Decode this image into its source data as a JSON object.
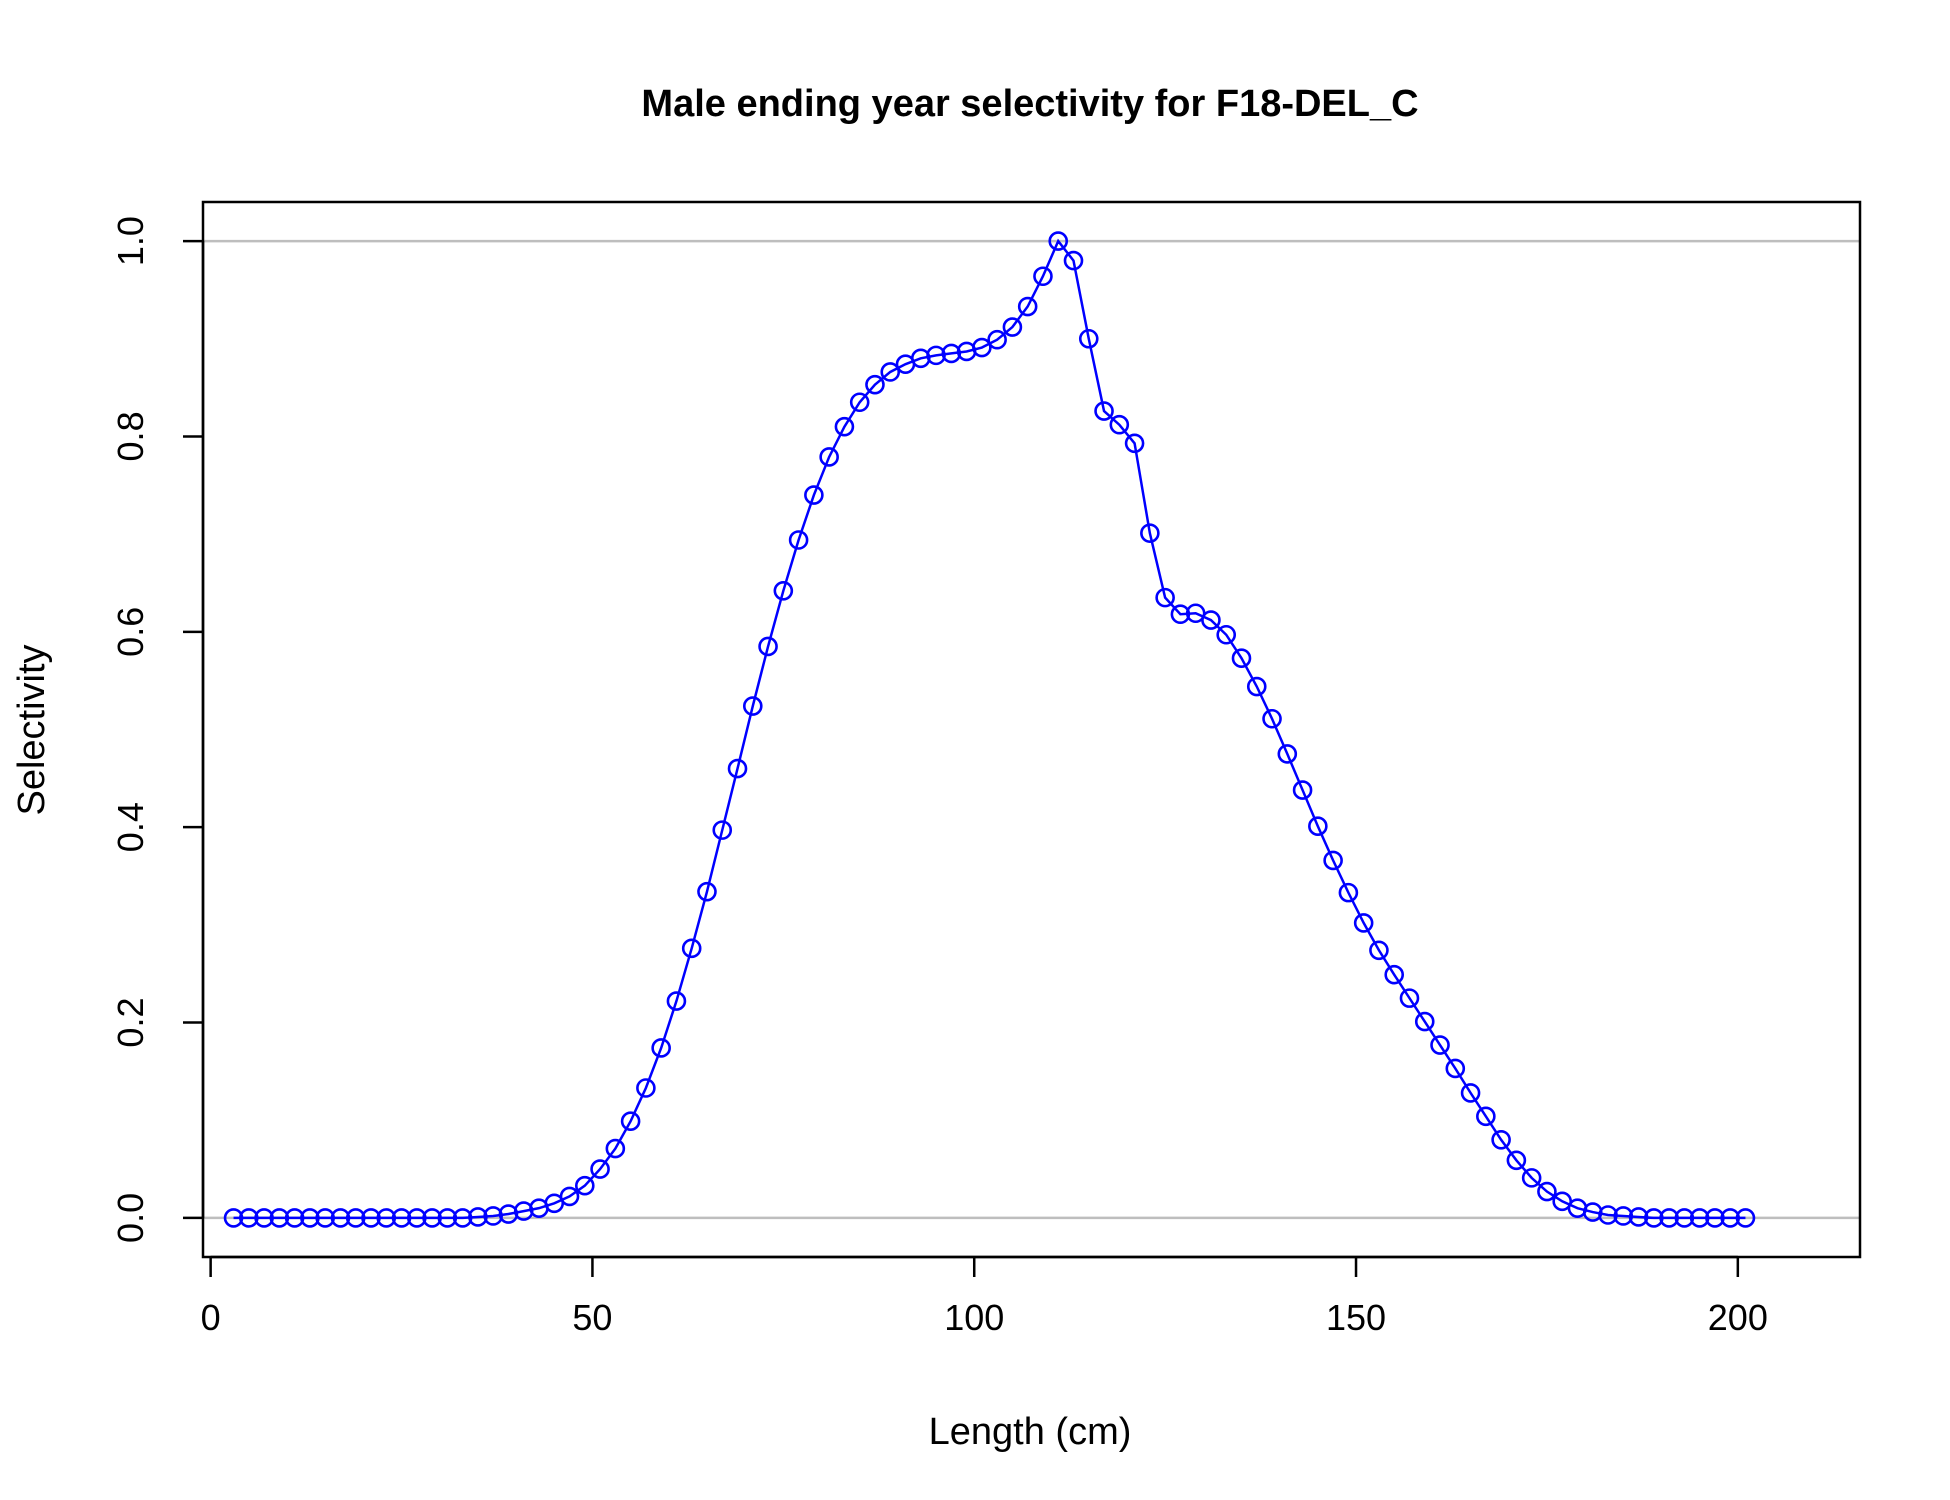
{
  "chart_data": {
    "type": "line",
    "title": "Male ending year selectivity for F18-DEL_C",
    "xlabel": "Length (cm)",
    "ylabel": "Selectivity",
    "xlim": [
      -1,
      216
    ],
    "ylim": [
      -0.04,
      1.04
    ],
    "x_ticks": [
      0,
      50,
      100,
      150,
      200
    ],
    "x_tick_labels": [
      "0",
      "50",
      "100",
      "150",
      "200"
    ],
    "y_ticks": [
      0,
      0.2,
      0.4,
      0.6,
      0.8,
      1
    ],
    "y_tick_labels": [
      "0.0",
      "0.2",
      "0.4",
      "0.6",
      "0.8",
      "1.0"
    ],
    "reference_lines": [
      0,
      1
    ],
    "grid": false,
    "legend": "none",
    "colors": {
      "series": "#0000ff",
      "reference": "#bebebe",
      "axis": "#000000"
    },
    "series": [
      {
        "x": [
          3,
          5,
          7,
          9,
          11,
          13,
          15,
          17,
          19,
          21,
          23,
          25,
          27,
          29,
          31,
          33,
          35,
          37,
          39,
          41,
          43,
          45,
          47,
          49,
          51,
          53,
          55,
          57,
          59,
          61,
          63,
          65,
          67,
          69,
          71,
          73,
          75,
          77,
          79,
          81,
          83,
          85,
          87,
          89,
          91,
          93,
          95,
          97,
          99,
          101,
          103,
          105,
          107,
          109,
          111,
          113,
          115,
          117,
          119,
          121,
          123,
          125,
          127,
          129,
          131,
          133,
          135,
          137,
          139,
          141,
          143,
          145,
          147,
          149,
          151,
          153,
          155,
          157,
          159,
          161,
          163,
          165,
          167,
          169,
          171,
          173,
          175,
          177,
          179,
          181,
          183,
          185,
          187,
          189,
          191,
          193,
          195,
          197,
          199,
          201
        ],
        "values": [
          0,
          0,
          0,
          0,
          0,
          0,
          0,
          0,
          0,
          0,
          0,
          0,
          0,
          0,
          0,
          0,
          0.001,
          0.002,
          0.004,
          0.007,
          0.01,
          0.015,
          0.022,
          0.033,
          0.05,
          0.071,
          0.099,
          0.133,
          0.174,
          0.222,
          0.276,
          0.334,
          0.397,
          0.46,
          0.524,
          0.585,
          0.642,
          0.694,
          0.74,
          0.779,
          0.81,
          0.835,
          0.853,
          0.866,
          0.874,
          0.88,
          0.883,
          0.885,
          0.887,
          0.891,
          0.899,
          0.912,
          0.933,
          0.964,
          1.0,
          0.98,
          0.9,
          0.826,
          0.812,
          0.793,
          0.701,
          0.635,
          0.618,
          0.619,
          0.612,
          0.597,
          0.573,
          0.544,
          0.511,
          0.475,
          0.438,
          0.401,
          0.366,
          0.333,
          0.302,
          0.274,
          0.249,
          0.225,
          0.201,
          0.177,
          0.153,
          0.128,
          0.104,
          0.08,
          0.059,
          0.041,
          0.027,
          0.017,
          0.01,
          0.006,
          0.003,
          0.002,
          0.001,
          0,
          0,
          0,
          0,
          0,
          0,
          0
        ]
      }
    ]
  }
}
